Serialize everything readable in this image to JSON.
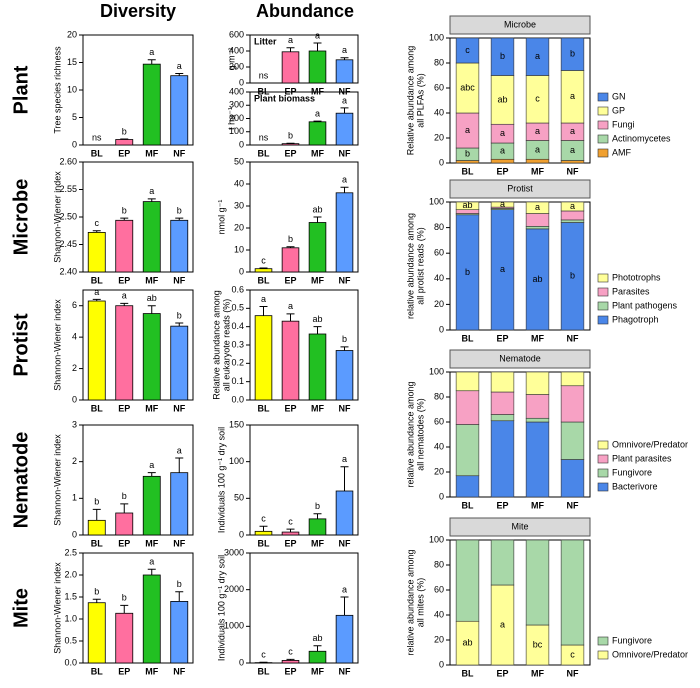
{
  "column_titles": [
    "Diversity",
    "Abundance"
  ],
  "row_titles": [
    "Plant",
    "Microbe",
    "Protist",
    "Nematode",
    "Mite"
  ],
  "category_colors": [
    "#ffff00",
    "#ff6f9f",
    "#22c022",
    "#5b9bff"
  ],
  "chart_data": [
    {
      "type": "bar",
      "ylabel": "Tree species richness",
      "categories": [
        "BL",
        "EP",
        "MF",
        "NF"
      ],
      "values": [
        0,
        1,
        14.7,
        12.6
      ],
      "errors": [
        0,
        0.1,
        0.8,
        0.4
      ],
      "letters": [
        "ns",
        "b",
        "a",
        "a"
      ],
      "ylim": [
        0,
        20
      ],
      "yticks": [
        0,
        5,
        10,
        15,
        20
      ]
    },
    {
      "type": "bar",
      "ylabel": "Shannon-Wiener index",
      "categories": [
        "BL",
        "EP",
        "MF",
        "NF"
      ],
      "values": [
        2.472,
        2.494,
        2.528,
        2.494
      ],
      "errors": [
        0.003,
        0.004,
        0.005,
        0.004
      ],
      "letters": [
        "c",
        "b",
        "a",
        "b"
      ],
      "ylim": [
        2.4,
        2.6
      ],
      "yticks": [
        {
          "value": 2.4,
          "label": "2.40"
        },
        2.45,
        {
          "value": 2.5,
          "label": "2.50"
        },
        2.55,
        {
          "value": 2.6,
          "label": "2.60"
        }
      ]
    },
    {
      "type": "bar",
      "ylabel": "Shannon-Wiener index",
      "categories": [
        "BL",
        "EP",
        "MF",
        "NF"
      ],
      "values": [
        6.3,
        6.0,
        5.5,
        4.7
      ],
      "errors": [
        0.1,
        0.15,
        0.5,
        0.2
      ],
      "letters": [
        "a",
        "a",
        "ab",
        "b"
      ],
      "ylim": [
        0,
        7
      ],
      "yticks": [
        0,
        2,
        4,
        6
      ]
    },
    {
      "type": "bar",
      "ylabel": "Shannon-Wiener index",
      "categories": [
        "BL",
        "EP",
        "MF",
        "NF"
      ],
      "values": [
        0.4,
        0.6,
        1.6,
        1.7
      ],
      "errors": [
        0.3,
        0.25,
        0.1,
        0.4
      ],
      "letters": [
        "b",
        "b",
        "a",
        "a"
      ],
      "ylim": [
        0,
        3
      ],
      "yticks": [
        0,
        1,
        2,
        3
      ]
    },
    {
      "type": "bar",
      "ylabel": "Shannon-Wiener index",
      "categories": [
        "BL",
        "EP",
        "MF",
        "NF"
      ],
      "values": [
        1.37,
        1.13,
        2.0,
        1.4
      ],
      "errors": [
        0.08,
        0.18,
        0.13,
        0.22
      ],
      "letters": [
        "b",
        "b",
        "a",
        "b"
      ],
      "ylim": [
        0,
        2.5
      ],
      "yticks": [
        {
          "value": 0,
          "label": "0.0"
        },
        0.5,
        {
          "value": 1,
          "label": "1.0"
        },
        1.5,
        {
          "value": 2,
          "label": "2.0"
        },
        2.5
      ]
    },
    {
      "type": "bar",
      "panel_label": "Litter",
      "ylabel": "g m⁻²",
      "categories": [
        "BL",
        "EP",
        "MF",
        "NF"
      ],
      "values": [
        0,
        390,
        400,
        290
      ],
      "errors": [
        0,
        50,
        100,
        25
      ],
      "letters": [
        "ns",
        "a",
        "a",
        "a"
      ],
      "ylim": [
        0,
        600
      ],
      "yticks": [
        0,
        200,
        400,
        600
      ]
    },
    {
      "type": "bar",
      "panel_label": "Plant biomass",
      "ylabel": "t ha⁻¹",
      "categories": [
        "BL",
        "EP",
        "MF",
        "NF"
      ],
      "values": [
        0,
        10,
        175,
        240
      ],
      "errors": [
        0,
        3,
        5,
        40
      ],
      "letters": [
        "ns",
        "b",
        "a",
        "a"
      ],
      "ylim": [
        0,
        400
      ],
      "yticks": [
        0,
        100,
        200,
        300,
        400
      ]
    },
    {
      "type": "bar",
      "ylabel": "nmol g⁻¹",
      "categories": [
        "BL",
        "EP",
        "MF",
        "NF"
      ],
      "values": [
        1.5,
        11,
        22.5,
        36
      ],
      "errors": [
        0.3,
        0.5,
        2.5,
        2.5
      ],
      "letters": [
        "c",
        "b",
        "ab",
        "a"
      ],
      "ylim": [
        0,
        50
      ],
      "yticks": [
        0,
        10,
        20,
        30,
        40,
        50
      ]
    },
    {
      "type": "bar",
      "ylabel": [
        "Relative abundance among",
        "all eukaryote reads (%)"
      ],
      "categories": [
        "BL",
        "EP",
        "MF",
        "NF"
      ],
      "values": [
        0.46,
        0.43,
        0.36,
        0.27
      ],
      "errors": [
        0.05,
        0.04,
        0.04,
        0.02
      ],
      "letters": [
        "a",
        "a",
        "ab",
        "b"
      ],
      "ylim": [
        0,
        0.6
      ],
      "yticks": [
        {
          "value": 0,
          "label": "0.0"
        },
        0.1,
        0.2,
        0.3,
        0.4,
        0.5,
        0.6
      ]
    },
    {
      "type": "bar",
      "ylabel": "Individuals 100 g⁻¹ dry soil",
      "categories": [
        "BL",
        "EP",
        "MF",
        "NF"
      ],
      "values": [
        5,
        4,
        22,
        60
      ],
      "errors": [
        7,
        4,
        7,
        33
      ],
      "letters": [
        "c",
        "c",
        "b",
        "a"
      ],
      "ylim": [
        0,
        150
      ],
      "yticks": [
        0,
        50,
        100,
        150
      ]
    },
    {
      "type": "bar",
      "ylabel": "Individuals 100 g⁻¹ dry soil",
      "categories": [
        "BL",
        "EP",
        "MF",
        "NF"
      ],
      "values": [
        10,
        70,
        320,
        1300
      ],
      "errors": [
        10,
        30,
        150,
        500
      ],
      "letters": [
        "c",
        "c",
        "ab",
        "a"
      ],
      "ylim": [
        0,
        3000
      ],
      "yticks": [
        0,
        1000,
        2000,
        3000
      ]
    },
    {
      "type": "stacked_bar",
      "title": "Microbe",
      "ylabel": [
        "Relative abundance among",
        "all PLFAs (%)"
      ],
      "categories": [
        "BL",
        "EP",
        "MF",
        "NF"
      ],
      "ylim": [
        0,
        100
      ],
      "yticks": [
        0,
        20,
        40,
        60,
        80,
        100
      ],
      "series": [
        {
          "name": "GN",
          "color": "#4a86e8",
          "values": [
            20,
            30,
            30,
            26
          ],
          "letters": [
            "c",
            "b",
            "a",
            "b"
          ]
        },
        {
          "name": "GP",
          "color": "#ffff99",
          "values": [
            40,
            39,
            38,
            42
          ],
          "letters": [
            "abc",
            "ab",
            "c",
            "a"
          ]
        },
        {
          "name": "Fungi",
          "color": "#f7a1c4",
          "values": [
            28,
            15,
            14,
            14
          ],
          "letters": [
            "a",
            "a",
            "a",
            "a"
          ]
        },
        {
          "name": "Actinomycetes",
          "color": "#a8d8a8",
          "values": [
            10,
            13,
            15,
            16
          ],
          "letters": [
            "b",
            "a",
            "a",
            "a"
          ]
        },
        {
          "name": "AMF",
          "color": "#f0a030",
          "values": [
            2,
            3,
            3,
            2
          ]
        }
      ]
    },
    {
      "type": "stacked_bar",
      "title": "Protist",
      "ylabel": [
        "relative abundance among",
        "all protist reads (%)"
      ],
      "categories": [
        "BL",
        "EP",
        "MF",
        "NF"
      ],
      "ylim": [
        0,
        100
      ],
      "yticks": [
        0,
        20,
        40,
        60,
        80,
        100
      ],
      "series": [
        {
          "name": "Phototrophs",
          "color": "#ffff99",
          "values": [
            6,
            4,
            9,
            7
          ],
          "letters": [
            "ab",
            "a",
            "a",
            "a"
          ]
        },
        {
          "name": "Parasites",
          "color": "#f7a1c4",
          "values": [
            3,
            1,
            10,
            7
          ]
        },
        {
          "name": "Plant pathogens",
          "color": "#a8d8a8",
          "values": [
            1,
            1,
            2,
            2
          ]
        },
        {
          "name": "Phagotroph",
          "color": "#4a86e8",
          "values": [
            90,
            94,
            79,
            84
          ],
          "letters": [
            "b",
            "a",
            "ab",
            "b"
          ]
        }
      ]
    },
    {
      "type": "stacked_bar",
      "title": "Nematode",
      "ylabel": [
        "relative abundance among",
        "all nematodes (%)"
      ],
      "categories": [
        "BL",
        "EP",
        "MF",
        "NF"
      ],
      "ylim": [
        0,
        100
      ],
      "yticks": [
        0,
        20,
        40,
        60,
        80,
        100
      ],
      "series": [
        {
          "name": "Omnivore/Predator",
          "color": "#ffff99",
          "values": [
            15,
            16,
            18,
            11
          ]
        },
        {
          "name": "Plant parasites",
          "color": "#f7a1c4",
          "values": [
            27,
            18,
            19,
            29
          ]
        },
        {
          "name": "Fungivore",
          "color": "#a8d8a8",
          "values": [
            41,
            5,
            3,
            30
          ]
        },
        {
          "name": "Bacterivore",
          "color": "#4a86e8",
          "values": [
            17,
            61,
            60,
            30
          ]
        }
      ]
    },
    {
      "type": "stacked_bar",
      "title": "Mite",
      "ylabel": [
        "relative abundance among",
        "all mites (%)"
      ],
      "categories": [
        "BL",
        "EP",
        "MF",
        "NF"
      ],
      "ylim": [
        0,
        100
      ],
      "yticks": [
        0,
        20,
        40,
        60,
        80,
        100
      ],
      "series": [
        {
          "name": "Fungivore",
          "color": "#a8d8a8",
          "values": [
            65,
            36,
            68,
            84
          ]
        },
        {
          "name": "Omnivore/Predator",
          "color": "#ffff99",
          "values": [
            35,
            64,
            32,
            16
          ],
          "letters": [
            "ab",
            "a",
            "bc",
            "c"
          ]
        }
      ]
    }
  ]
}
